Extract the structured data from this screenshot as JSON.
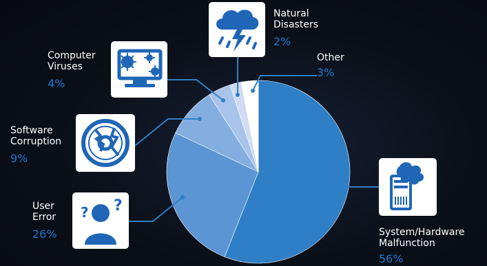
{
  "chart_data": {
    "type": "pie",
    "slices": [
      {
        "key": "system",
        "label": "System/Hardware Malfunction",
        "value": 56,
        "color": "#2f7fc6"
      },
      {
        "key": "user",
        "label": "User Error",
        "value": 26,
        "color": "#5b95d3"
      },
      {
        "key": "software",
        "label": "Software Corruption",
        "value": 9,
        "color": "#85aee0"
      },
      {
        "key": "virus",
        "label": "Computer Viruses",
        "value": 4,
        "color": "#a9c4ea"
      },
      {
        "key": "natural",
        "label": "Natural Disasters",
        "value": 2,
        "color": "#cfdcf3"
      },
      {
        "key": "other",
        "label": "Other",
        "value": 3,
        "color": "#ffffff"
      }
    ]
  },
  "labels": {
    "natural": {
      "l1": "Natural",
      "l2": "Disasters",
      "pct": "2%"
    },
    "other": {
      "l1": "Other",
      "pct": "3%"
    },
    "virus": {
      "l1": "Computer",
      "l2": "Viruses",
      "pct": "4%"
    },
    "software": {
      "l1": "Software",
      "l2": "Corruption",
      "pct": "9%"
    },
    "user": {
      "l1": "User",
      "l2": "Error",
      "pct": "26%"
    },
    "system": {
      "l1": "System/Hardware",
      "l2": "Malfunction",
      "pct": "56%"
    }
  },
  "icons": {
    "natural": "storm-cloud-icon",
    "virus": "computer-virus-icon",
    "software": "broken-disc-icon",
    "user": "confused-user-icon",
    "system": "smoking-computer-tower-icon"
  },
  "colors": {
    "accent": "#1a78d0",
    "line": "#2f7fc6",
    "background": "#0a0d14"
  }
}
